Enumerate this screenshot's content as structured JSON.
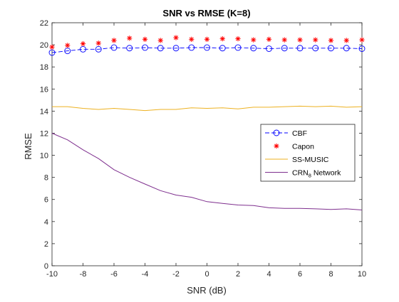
{
  "chart_data": {
    "type": "line",
    "title": "SNR vs RMSE (K=8)",
    "xlabel": "SNR (dB)",
    "ylabel": "RMSE",
    "xlim": [
      -10,
      10
    ],
    "ylim": [
      0,
      22
    ],
    "xticks": [
      -10,
      -8,
      -6,
      -4,
      -2,
      0,
      2,
      4,
      6,
      8,
      10
    ],
    "yticks": [
      0,
      2,
      4,
      6,
      8,
      10,
      12,
      14,
      16,
      18,
      20,
      22
    ],
    "x": [
      -10,
      -9,
      -8,
      -7,
      -6,
      -5,
      -4,
      -3,
      -2,
      -1,
      0,
      1,
      2,
      3,
      4,
      5,
      6,
      7,
      8,
      9,
      10
    ],
    "grid": false,
    "legend_position": "right-middle",
    "series": [
      {
        "name": "CBF",
        "color": "#0000ff",
        "style": "dash-circle",
        "values": [
          19.3,
          19.45,
          19.6,
          19.6,
          19.75,
          19.7,
          19.75,
          19.7,
          19.7,
          19.75,
          19.75,
          19.7,
          19.75,
          19.7,
          19.65,
          19.7,
          19.7,
          19.7,
          19.7,
          19.7,
          19.65
        ]
      },
      {
        "name": "Capon",
        "color": "#ff0000",
        "style": "star",
        "values": [
          19.8,
          19.95,
          20.1,
          20.15,
          20.4,
          20.6,
          20.5,
          20.4,
          20.65,
          20.5,
          20.5,
          20.55,
          20.55,
          20.45,
          20.5,
          20.45,
          20.45,
          20.45,
          20.4,
          20.4,
          20.45
        ]
      },
      {
        "name": "SS-MUSIC",
        "color": "#edb120",
        "style": "solid",
        "values": [
          14.4,
          14.4,
          14.25,
          14.15,
          14.25,
          14.15,
          14.05,
          14.15,
          14.15,
          14.3,
          14.25,
          14.3,
          14.2,
          14.35,
          14.35,
          14.4,
          14.45,
          14.4,
          14.45,
          14.35,
          14.4
        ]
      },
      {
        "name": "CRN",
        "name_subscript": "8",
        "name_suffix": " Network",
        "color": "#7e2f8e",
        "style": "solid",
        "values": [
          12.0,
          11.4,
          10.5,
          9.7,
          8.7,
          8.0,
          7.4,
          6.8,
          6.4,
          6.2,
          5.8,
          5.65,
          5.5,
          5.45,
          5.25,
          5.2,
          5.2,
          5.15,
          5.1,
          5.15,
          5.05
        ]
      }
    ]
  }
}
